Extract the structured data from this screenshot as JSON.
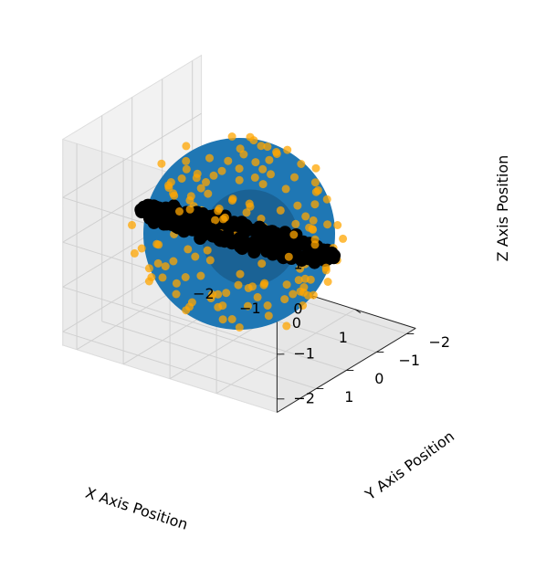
{
  "chart_data": {
    "type": "scatter",
    "projection": "3d",
    "title": "",
    "xlabel": "X Axis Position",
    "ylabel": "Y Axis Position",
    "zlabel": "Z Axis Position",
    "xlim": [
      -2.3,
      2.3
    ],
    "ylim": [
      -2.3,
      2.3
    ],
    "zlim": [
      -2.3,
      2.3
    ],
    "x_ticks": [
      -2,
      -1,
      0,
      1
    ],
    "y_ticks": [
      -2,
      -1,
      0,
      1
    ],
    "z_ticks": [
      -2,
      -1,
      0,
      1
    ],
    "x_tick_labels": [
      "−2",
      "−1",
      "0",
      "1"
    ],
    "y_tick_labels": [
      "−2",
      "−1",
      "0",
      "1"
    ],
    "z_tick_labels": [
      "−2",
      "−1",
      "0",
      "1"
    ],
    "grid": true,
    "legend": "none",
    "surfaces": [
      {
        "kind": "sphere",
        "radius": 2.0,
        "center": [
          0,
          0,
          0
        ],
        "color": "#1f77b4"
      },
      {
        "kind": "sphere",
        "radius": 1.0,
        "center": [
          0,
          0,
          0
        ],
        "color": "#1a5f91"
      }
    ],
    "series": [
      {
        "kind": "ring",
        "color": "#000000",
        "radius": 1.6,
        "tilt_deg": 25,
        "count": 260,
        "marker": "o"
      },
      {
        "kind": "random-shell",
        "color": "#ffa500",
        "alpha": 0.75,
        "radius_range": [
          0.4,
          2.0
        ],
        "count": 150,
        "marker": "o"
      }
    ]
  },
  "colors": {
    "background": "#ffffff",
    "pane_left": "#f2f2f2",
    "pane_right": "#ebebeb",
    "pane_floor": "#e6e6e6",
    "grid": "#d0d0d0",
    "outer_sphere": "#1f77b4",
    "inner_sphere": "#1a5f91",
    "ring_points": "#000000",
    "scatter_points": "#ffa500"
  }
}
